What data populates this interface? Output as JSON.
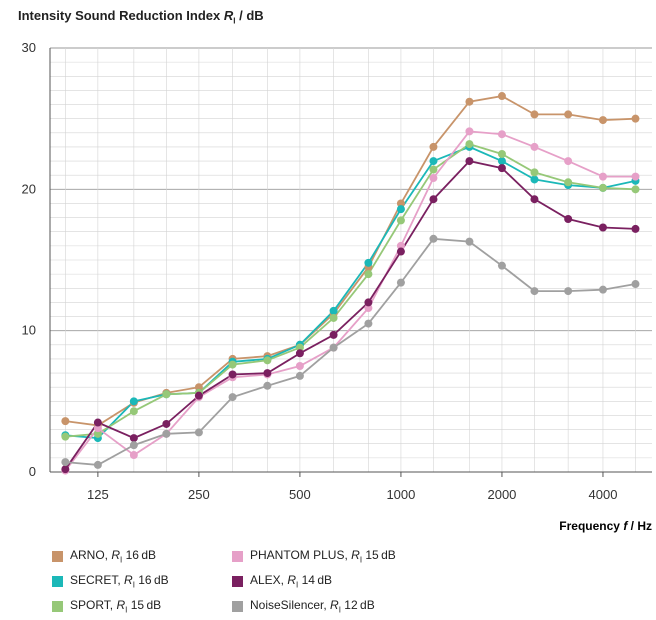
{
  "chart_data": {
    "type": "line",
    "title": "Intensity Sound Reduction Index",
    "ylabel_symbol": "R",
    "ylabel_sub": "I",
    "ylabel_unit": "/ dB",
    "xlabel": "Frequency",
    "xlabel_symbol": "f",
    "xlabel_unit": "/ Hz",
    "x_scale": "log",
    "ylim": [
      0,
      30
    ],
    "yticks": [
      0,
      10,
      20,
      30
    ],
    "xticks": [
      125,
      250,
      500,
      1000,
      2000,
      4000
    ],
    "x": [
      100,
      125,
      160,
      200,
      250,
      315,
      400,
      500,
      630,
      800,
      1000,
      1250,
      1600,
      2000,
      2500,
      3150,
      4000,
      5000
    ],
    "grid": true,
    "series": [
      {
        "name": "ARNO",
        "rating": "16",
        "color": "#c8946a",
        "values": [
          3.6,
          3.3,
          4.9,
          5.6,
          6.0,
          8.0,
          8.2,
          9.0,
          11.2,
          14.5,
          19.0,
          23.0,
          26.2,
          26.6,
          25.3,
          25.3,
          24.9,
          25.0
        ]
      },
      {
        "name": "SECRET",
        "rating": "16",
        "color": "#1bb8b8",
        "values": [
          2.6,
          2.4,
          5.0,
          5.5,
          5.6,
          7.8,
          8.0,
          9.0,
          11.4,
          14.8,
          18.6,
          22.0,
          23.0,
          22.0,
          20.7,
          20.3,
          20.1,
          20.6
        ]
      },
      {
        "name": "SPORT",
        "rating": "15",
        "color": "#96c878",
        "values": [
          2.5,
          2.7,
          4.3,
          5.5,
          5.6,
          7.6,
          7.9,
          8.8,
          10.9,
          14.0,
          17.8,
          21.4,
          23.2,
          22.5,
          21.2,
          20.5,
          20.1,
          20.0
        ]
      },
      {
        "name": "PHANTOM PLUS",
        "rating": "15",
        "color": "#e6a0c8",
        "values": [
          0.1,
          3.1,
          1.2,
          2.7,
          5.3,
          6.7,
          6.9,
          7.5,
          8.8,
          11.6,
          16.0,
          20.8,
          24.1,
          23.9,
          23.0,
          22.0,
          20.9,
          20.9
        ]
      },
      {
        "name": "ALEX",
        "rating": "14",
        "color": "#7a2060",
        "values": [
          0.2,
          3.5,
          2.4,
          3.4,
          5.4,
          6.9,
          7.0,
          8.4,
          9.7,
          12.0,
          15.6,
          19.3,
          22.0,
          21.5,
          19.3,
          17.9,
          17.3,
          17.2
        ]
      },
      {
        "name": "NoiseSilencer",
        "rating": "12",
        "color": "#a0a0a0",
        "values": [
          0.7,
          0.5,
          1.9,
          2.7,
          2.8,
          5.3,
          6.1,
          6.8,
          8.8,
          10.5,
          13.4,
          16.5,
          16.3,
          14.6,
          12.8,
          12.8,
          12.9,
          13.3
        ]
      }
    ],
    "legend_rating_unit": "dB",
    "legend_placement": "bottom"
  }
}
